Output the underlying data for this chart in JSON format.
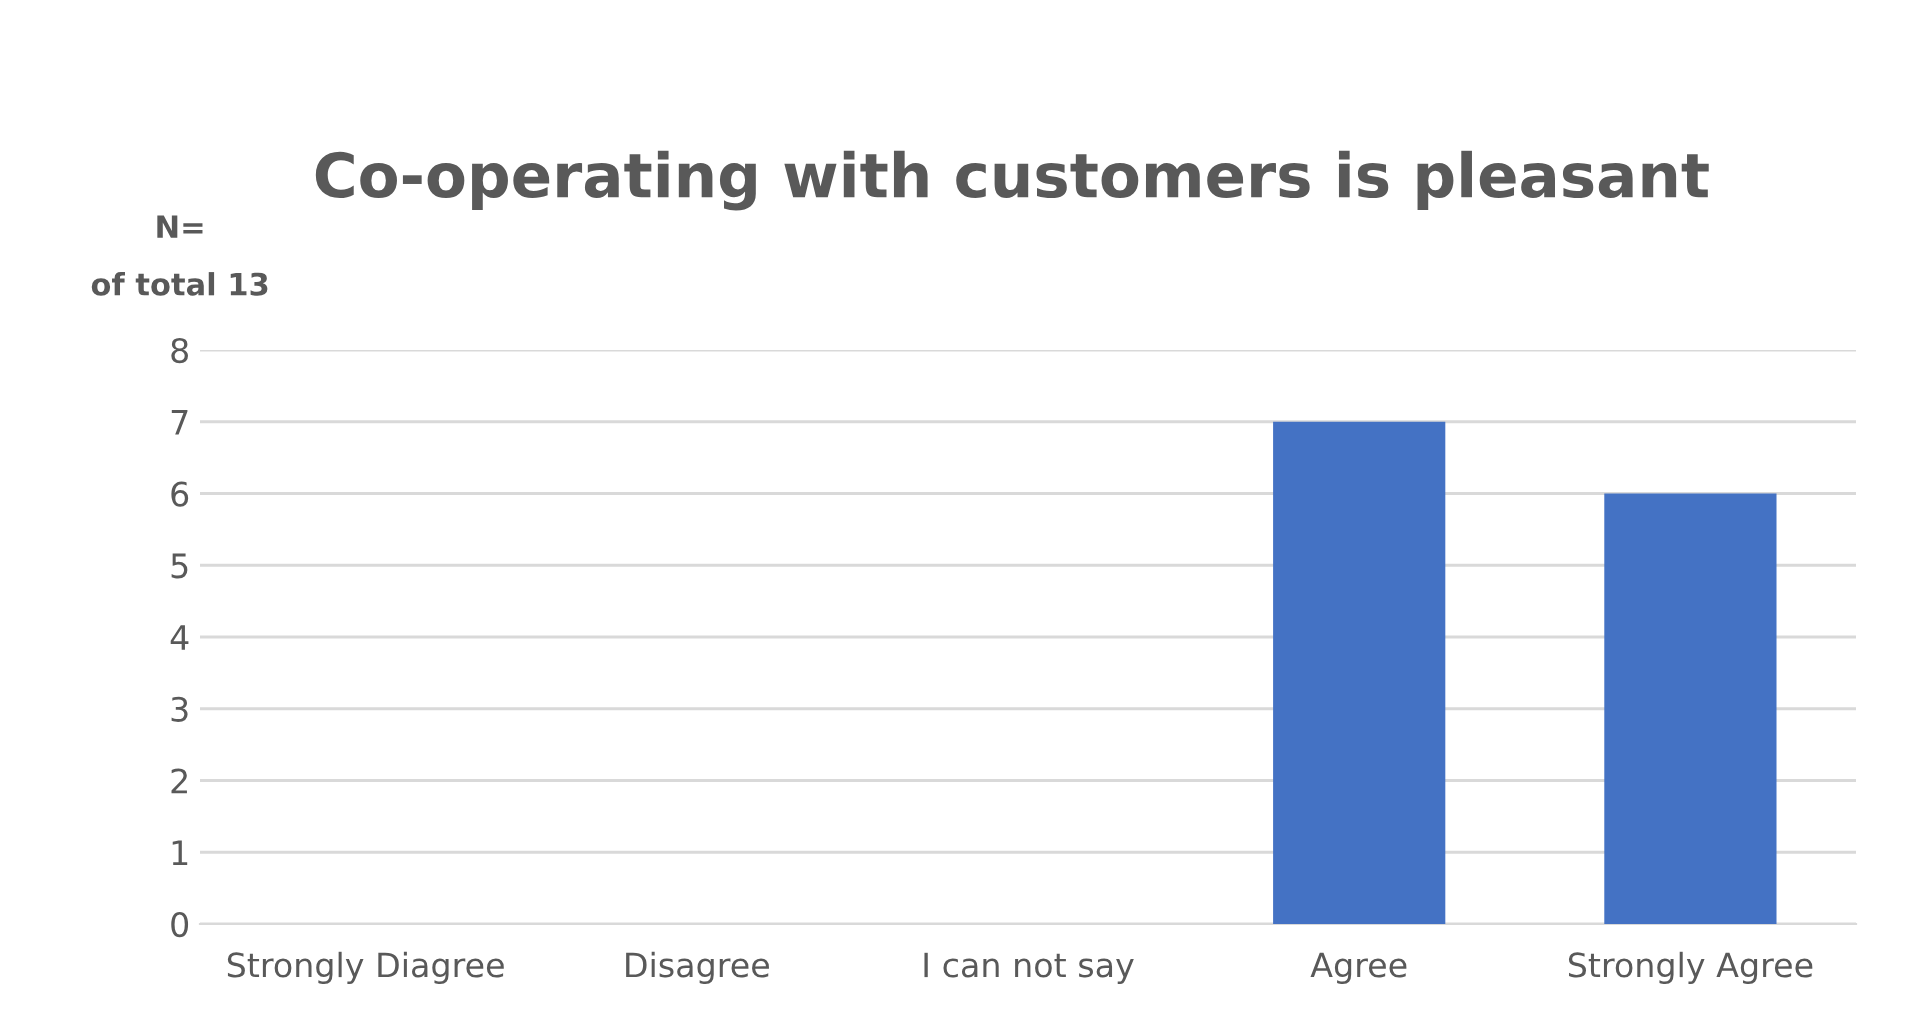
{
  "chart_data": {
    "type": "bar",
    "title": "Co-operating with customers is pleasant",
    "ylabel": "N=\nof total 13",
    "categories": [
      "Strongly Diagree",
      "Disagree",
      "I can not say",
      "Agree",
      "Strongly Agree"
    ],
    "values": [
      0,
      0,
      0,
      7,
      6
    ],
    "color": "#4472c4",
    "ylim": [
      0,
      8
    ],
    "yticks": [
      0,
      1,
      2,
      3,
      4,
      5,
      6,
      7,
      8
    ],
    "grid": "y"
  }
}
